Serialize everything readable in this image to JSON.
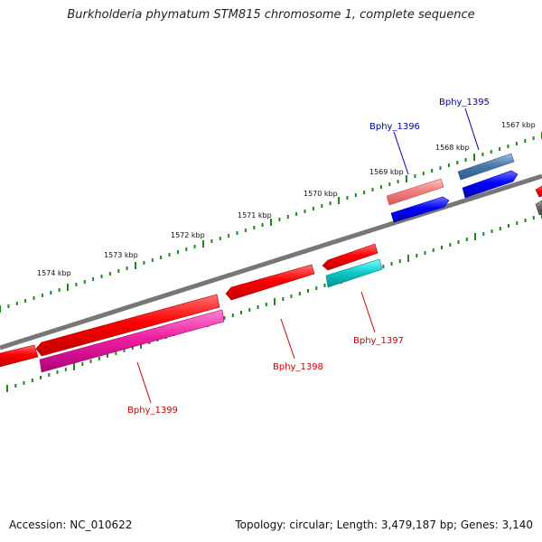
{
  "title": "Burkholderia phymatum STM815 chromosome 1, complete sequence",
  "footer": {
    "accession": "Accession: NC_010622",
    "stats": "Topology: circular; Length: 3,479,187 bp; Genes: 3,140"
  },
  "ticks": [
    "1567 kbp",
    "1568 kbp",
    "1569 kbp",
    "1570 kbp",
    "1571 kbp",
    "1572 kbp",
    "1573 kbp",
    "1574 kbp"
  ],
  "genes": [
    {
      "name": "Bphy_1395",
      "color": "#0000aa"
    },
    {
      "name": "Bphy_1396",
      "color": "#0000aa"
    },
    {
      "name": "Bphy_1397",
      "color": "#cc0000"
    },
    {
      "name": "Bphy_1398",
      "color": "#cc0000"
    },
    {
      "name": "Bphy_1399",
      "color": "#cc0000"
    }
  ]
}
